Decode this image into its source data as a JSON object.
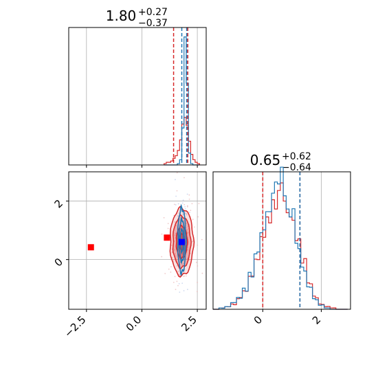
{
  "chart_data": {
    "type": "corner",
    "grid": true,
    "parameters": [
      {
        "title": {
          "value": "1.80",
          "plus": "+0.27",
          "minus": "−0.37"
        },
        "range": [
          -3.3,
          2.9
        ],
        "ticks": [
          {
            "value": -2.5,
            "label": "−2.5"
          },
          {
            "value": 0.0,
            "label": "0.0"
          },
          {
            "value": 2.5,
            "label": "2.5"
          }
        ],
        "quantile_lines": [
          {
            "series": "red",
            "values": [
              1.43,
              2.07
            ]
          },
          {
            "series": "blue",
            "values": [
              1.8,
              2.02
            ]
          }
        ]
      },
      {
        "title": {
          "value": "0.65",
          "plus": "+0.62",
          "minus": "−0.64"
        },
        "range": [
          -1.7,
          3.0
        ],
        "ticks": [
          {
            "value": 0,
            "label": "0"
          },
          {
            "value": 2,
            "label": "2"
          }
        ],
        "quantile_lines": [
          {
            "series": "red",
            "values": [
              0.0,
              1.27
            ]
          },
          {
            "series": "blue",
            "values": [
              1.27
            ]
          }
        ]
      }
    ],
    "series": [
      {
        "id": "red",
        "color": "#d62728"
      },
      {
        "id": "blue",
        "color": "#1f77b4"
      }
    ],
    "marginal_1": {
      "bins": [
        1.0,
        1.1,
        1.2,
        1.3,
        1.4,
        1.5,
        1.6,
        1.7,
        1.8,
        1.9,
        2.0,
        2.1,
        2.2,
        2.3,
        2.4,
        2.5,
        2.6
      ],
      "red": [
        0.01,
        0.02,
        0.02,
        0.03,
        0.05,
        0.07,
        0.11,
        0.19,
        0.31,
        0.36,
        0.3,
        0.18,
        0.08,
        0.04,
        0.02,
        0.01
      ],
      "blue": [
        0,
        0,
        0,
        0,
        0,
        0,
        0.01,
        0.04,
        0.28,
        0.97,
        0.62,
        0.09,
        0.01,
        0,
        0,
        0
      ]
    },
    "marginal_2": {
      "bins": [
        -1.7,
        -1.5,
        -1.3,
        -1.1,
        -0.9,
        -0.7,
        -0.5,
        -0.3,
        -0.1,
        0.1,
        0.3,
        0.5,
        0.7,
        0.9,
        1.1,
        1.3,
        1.5,
        1.7,
        1.9,
        2.1,
        2.3,
        2.5,
        2.7,
        2.9
      ],
      "red": [
        0.0,
        0.01,
        0.02,
        0.04,
        0.08,
        0.14,
        0.25,
        0.38,
        0.55,
        0.7,
        0.83,
        0.9,
        0.82,
        0.7,
        0.52,
        0.35,
        0.2,
        0.1,
        0.04,
        0.02,
        0.01,
        0.0,
        0.0
      ],
      "blue": [
        0.0,
        0.01,
        0.02,
        0.05,
        0.09,
        0.16,
        0.28,
        0.42,
        0.58,
        0.74,
        0.88,
        0.95,
        0.86,
        0.7,
        0.5,
        0.32,
        0.17,
        0.08,
        0.03,
        0.01,
        0.0,
        0.0,
        0.0
      ]
    },
    "joint": {
      "red_center": [
        1.8,
        0.6
      ],
      "red_sigma": [
        0.25,
        0.55
      ],
      "blue_center": [
        1.8,
        0.65
      ],
      "blue_sigma": [
        0.09,
        0.55
      ],
      "markers": [
        {
          "series": "red",
          "x": -2.3,
          "y": 0.42
        },
        {
          "series": "red",
          "x": 1.13,
          "y": 0.75
        },
        {
          "series": "blue",
          "x": 1.8,
          "y": 0.6
        }
      ]
    }
  }
}
